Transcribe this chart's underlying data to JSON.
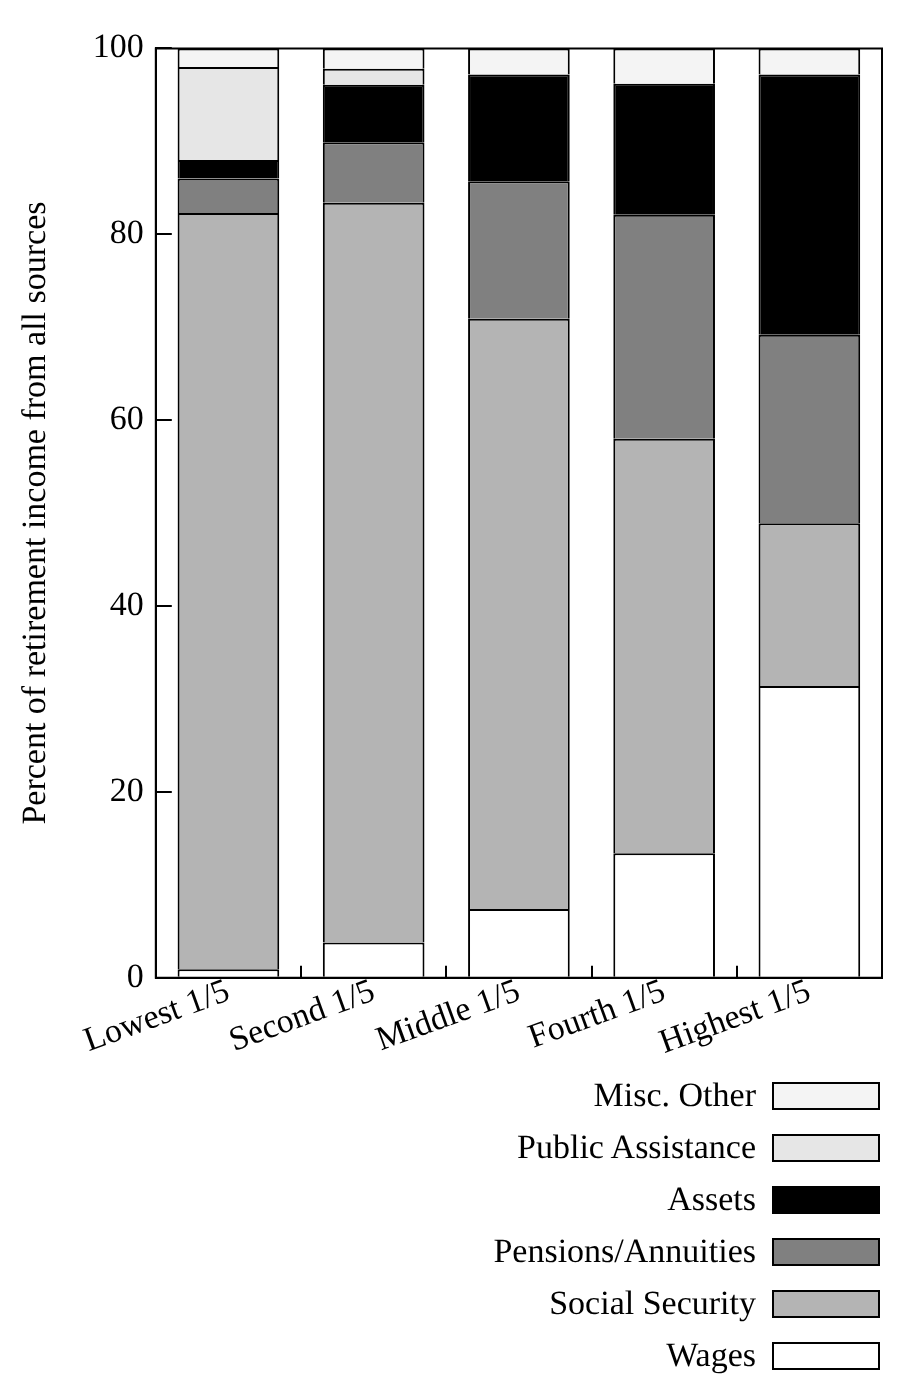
{
  "chart_data": {
    "type": "bar",
    "stacked": true,
    "ylabel": "Percent of retirement income from all sources",
    "categories": [
      "Lowest 1/5",
      "Second 1/5",
      "Middle 1/5",
      "Fourth 1/5",
      "Highest 1/5"
    ],
    "ylim": [
      0,
      100
    ],
    "yticks": [
      0,
      20,
      40,
      60,
      80,
      100
    ],
    "grid": false,
    "legend": "bottom",
    "series": [
      {
        "name": "Wages",
        "color": "#ffffff",
        "values": [
          0.9,
          3.8,
          7.4,
          13.4,
          31.4
        ]
      },
      {
        "name": "Social Security",
        "color": "#b4b4b4",
        "values": [
          81.4,
          79.6,
          63.5,
          44.6,
          17.5
        ]
      },
      {
        "name": "Pensions/Annuities",
        "color": "#808080",
        "values": [
          3.7,
          6.5,
          14.8,
          24.1,
          20.3
        ]
      },
      {
        "name": "Assets",
        "color": "#000000",
        "values": [
          2.0,
          6.2,
          11.5,
          14.1,
          28.0
        ]
      },
      {
        "name": "Public Assistance",
        "color": "#e6e6e6",
        "values": [
          10.0,
          1.7,
          0,
          0,
          0
        ]
      },
      {
        "name": "Misc. Other",
        "color": "#f4f4f4",
        "values": [
          2.0,
          2.2,
          2.8,
          3.8,
          2.8
        ]
      }
    ]
  }
}
